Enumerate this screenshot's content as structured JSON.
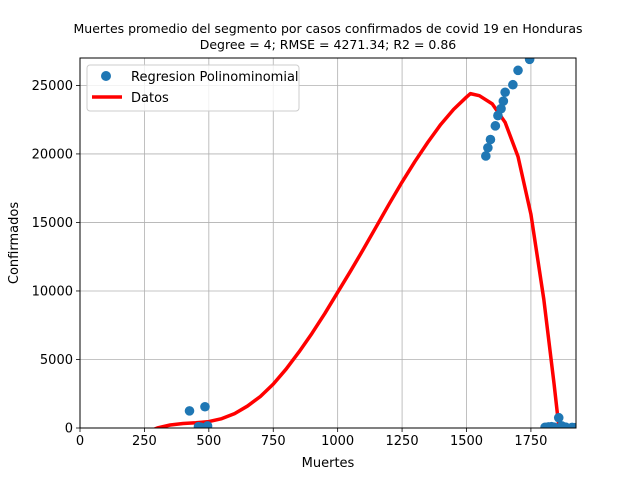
{
  "chart_data": {
    "type": "scatter",
    "title": "Muertes promedio del segmento por casos confirmados de covid 19 en  Honduras",
    "subtitle": "Degree = 4; RMSE = 4271.34; R2 = 0.86",
    "xlabel": "Muertes",
    "ylabel": "Confirmados",
    "xlim": [
      0,
      1925
    ],
    "ylim": [
      0,
      27000
    ],
    "xticks": [
      0,
      250,
      500,
      750,
      1000,
      1250,
      1500,
      1750
    ],
    "yticks": [
      0,
      5000,
      10000,
      15000,
      20000,
      25000
    ],
    "xtick_labels": [
      "0",
      "250",
      "500",
      "750",
      "1000",
      "1250",
      "1500",
      "1750"
    ],
    "ytick_labels": [
      "0",
      "5000",
      "10000",
      "15000",
      "20000",
      "25000"
    ],
    "grid": true,
    "legend_position": "upper-left",
    "series": [
      {
        "name": "Regresion Polinominomial",
        "kind": "scatter",
        "color": "#1f77b4",
        "points": [
          [
            425,
            1250
          ],
          [
            460,
            100
          ],
          [
            470,
            50
          ],
          [
            485,
            1550
          ],
          [
            495,
            150
          ],
          [
            1575,
            19850
          ],
          [
            1583,
            20450
          ],
          [
            1593,
            21050
          ],
          [
            1612,
            22050
          ],
          [
            1622,
            22800
          ],
          [
            1634,
            23300
          ],
          [
            1643,
            23850
          ],
          [
            1650,
            24500
          ],
          [
            1680,
            25050
          ],
          [
            1700,
            26100
          ],
          [
            1745,
            26900
          ],
          [
            1805,
            50
          ],
          [
            1818,
            80
          ],
          [
            1830,
            100
          ],
          [
            1840,
            60
          ],
          [
            1858,
            750
          ],
          [
            1870,
            150
          ],
          [
            1885,
            60
          ],
          [
            1910,
            40
          ],
          [
            1920,
            20
          ]
        ]
      },
      {
        "name": "Datos",
        "kind": "line",
        "color": "#ff0000",
        "points": [
          [
            260,
            -300
          ],
          [
            300,
            0
          ],
          [
            350,
            220
          ],
          [
            400,
            330
          ],
          [
            450,
            380
          ],
          [
            500,
            470
          ],
          [
            550,
            680
          ],
          [
            600,
            1050
          ],
          [
            650,
            1600
          ],
          [
            700,
            2300
          ],
          [
            750,
            3200
          ],
          [
            800,
            4300
          ],
          [
            850,
            5550
          ],
          [
            900,
            6900
          ],
          [
            950,
            8350
          ],
          [
            1000,
            9900
          ],
          [
            1050,
            11450
          ],
          [
            1100,
            13050
          ],
          [
            1150,
            14700
          ],
          [
            1200,
            16350
          ],
          [
            1250,
            17950
          ],
          [
            1300,
            19450
          ],
          [
            1350,
            20850
          ],
          [
            1400,
            22150
          ],
          [
            1450,
            23250
          ],
          [
            1500,
            24150
          ],
          [
            1515,
            24400
          ],
          [
            1550,
            24250
          ],
          [
            1600,
            23650
          ],
          [
            1650,
            22300
          ],
          [
            1700,
            19800
          ],
          [
            1750,
            15600
          ],
          [
            1800,
            9400
          ],
          [
            1840,
            3200
          ],
          [
            1865,
            -1000
          ]
        ]
      }
    ]
  }
}
